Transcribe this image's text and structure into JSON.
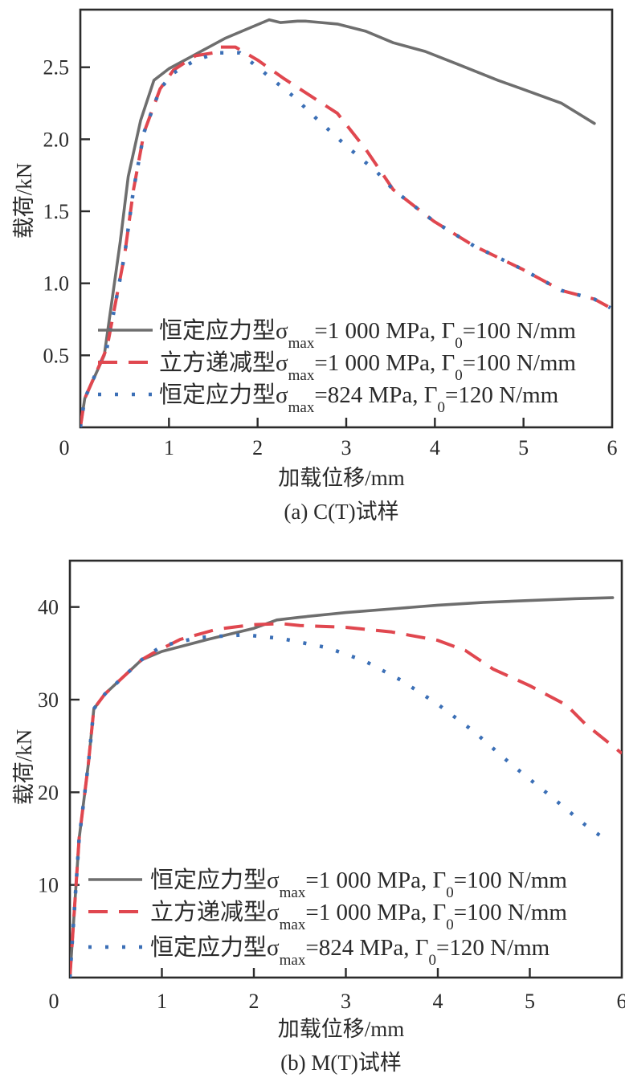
{
  "chart_data": [
    {
      "type": "line",
      "caption": "(a) C(T)试样",
      "title": "",
      "xlabel": "加载位移/mm",
      "ylabel": "载荷/kN",
      "xlim": [
        0,
        6
      ],
      "ylim": [
        0,
        2.9
      ],
      "xticks": [
        0,
        1,
        2,
        3,
        4,
        5,
        6
      ],
      "xtick_labels": [
        "0",
        "1",
        "2",
        "3",
        "4",
        "5",
        "6"
      ],
      "yticks": [
        0.5,
        1.0,
        1.5,
        2.0,
        2.5
      ],
      "ytick_labels": [
        "0.5",
        "1.0",
        "1.5",
        "2.0",
        "2.5"
      ],
      "grid": false,
      "legend_position": "bottom-right",
      "series": [
        {
          "name": "恒定应力型σmax=1 000 MPa, Γ0=100 N/mm",
          "legend": {
            "prefix": "恒定应力型σ",
            "sub1": "max",
            "mid": "=1 000 MPa, Γ",
            "sub2": "0",
            "suffix": "=100 N/mm"
          },
          "style": "solid",
          "color": "#6e6e6e",
          "x": [
            0,
            0.05,
            0.27,
            0.45,
            0.54,
            0.68,
            0.83,
            1.0,
            1.27,
            1.63,
            1.86,
            2.13,
            2.26,
            2.45,
            2.54,
            2.9,
            3.22,
            3.53,
            3.89,
            4.26,
            4.71,
            4.98,
            5.43,
            5.8
          ],
          "y": [
            0,
            0.2,
            0.5,
            1.29,
            1.74,
            2.13,
            2.41,
            2.49,
            2.58,
            2.7,
            2.76,
            2.83,
            2.81,
            2.82,
            2.82,
            2.8,
            2.75,
            2.67,
            2.61,
            2.52,
            2.41,
            2.35,
            2.25,
            2.11
          ]
        },
        {
          "name": "立方递减型σmax=1 000 MPa, Γ0=100 N/mm",
          "legend": {
            "prefix": "立方递减型σ",
            "sub1": "max",
            "mid": "=1 000 MPa, Γ",
            "sub2": "0",
            "suffix": "=100 N/mm"
          },
          "style": "dashed",
          "color": "#e0474f",
          "x": [
            0,
            0.05,
            0.3,
            0.5,
            0.6,
            0.72,
            0.9,
            1.05,
            1.3,
            1.5,
            1.55,
            1.75,
            2.0,
            2.3,
            2.6,
            2.9,
            3.22,
            3.53,
            3.99,
            4.44,
            4.98,
            5.43,
            5.8,
            5.98
          ],
          "y": [
            0,
            0.2,
            0.55,
            1.2,
            1.65,
            2.05,
            2.35,
            2.48,
            2.58,
            2.6,
            2.64,
            2.64,
            2.55,
            2.42,
            2.3,
            2.18,
            1.93,
            1.65,
            1.43,
            1.26,
            1.1,
            0.95,
            0.89,
            0.83
          ]
        },
        {
          "name": "恒定应力型σmax=824 MPa, Γ0=120 N/mm",
          "legend": {
            "prefix": "恒定应力型σ",
            "sub1": "max",
            "mid": "=824 MPa, Γ",
            "sub2": "0",
            "suffix": "=120 N/mm"
          },
          "style": "dotted",
          "color": "#3b6fb6",
          "x": [
            0,
            0.05,
            0.3,
            0.5,
            0.6,
            0.72,
            0.9,
            1.05,
            1.3,
            1.55,
            1.8,
            2.08,
            2.4,
            2.67,
            2.99,
            3.35,
            3.53,
            3.99,
            4.44,
            4.98,
            5.43,
            5.8,
            5.98
          ],
          "y": [
            0,
            0.2,
            0.55,
            1.2,
            1.65,
            2.05,
            2.35,
            2.46,
            2.55,
            2.6,
            2.6,
            2.46,
            2.3,
            2.14,
            1.96,
            1.77,
            1.65,
            1.43,
            1.26,
            1.1,
            0.95,
            0.89,
            0.83
          ]
        }
      ]
    },
    {
      "type": "line",
      "caption": "(b) M(T)试样",
      "title": "",
      "xlabel": "加载位移/mm",
      "ylabel": "载荷/kN",
      "xlim": [
        0,
        6
      ],
      "ylim": [
        0,
        45
      ],
      "xticks": [
        0,
        1,
        2,
        3,
        4,
        5,
        6
      ],
      "xtick_labels": [
        "0",
        "1",
        "2",
        "3",
        "4",
        "5",
        "6"
      ],
      "yticks": [
        10,
        20,
        30,
        40
      ],
      "ytick_labels": [
        "10",
        "20",
        "30",
        "40"
      ],
      "grid": false,
      "legend_position": "bottom-right",
      "series": [
        {
          "name": "恒定应力型σmax=1 000 MPa, Γ0=100 N/mm",
          "legend": {
            "prefix": "恒定应力型σ",
            "sub1": "max",
            "mid": "=1 000 MPa, Γ",
            "sub2": "0",
            "suffix": "=100 N/mm"
          },
          "style": "solid",
          "color": "#6e6e6e",
          "x": [
            0,
            0.1,
            0.2,
            0.26,
            0.38,
            0.78,
            1.0,
            1.5,
            2.0,
            2.25,
            2.5,
            3.0,
            3.5,
            4.0,
            4.5,
            5.0,
            5.5,
            5.9
          ],
          "y": [
            0,
            15,
            23,
            29,
            30.6,
            34.3,
            35.2,
            36.5,
            37.7,
            38.6,
            38.9,
            39.4,
            39.8,
            40.2,
            40.5,
            40.7,
            40.9,
            41.0
          ]
        },
        {
          "name": "立方递减型σmax=1 000 MPa, Γ0=100 N/mm",
          "legend": {
            "prefix": "立方递减型σ",
            "sub1": "max",
            "mid": "=1 000 MPa, Γ",
            "sub2": "0",
            "suffix": "=100 N/mm"
          },
          "style": "dashed",
          "color": "#e0474f",
          "x": [
            0,
            0.1,
            0.2,
            0.26,
            0.38,
            0.78,
            0.9,
            1.2,
            1.6,
            2.0,
            2.3,
            2.5,
            3.0,
            3.5,
            4.0,
            4.3,
            4.6,
            5.0,
            5.4,
            5.6,
            5.8,
            6.0
          ],
          "y": [
            0,
            15,
            23,
            29,
            30.6,
            34.3,
            35.0,
            36.5,
            37.6,
            38.1,
            38.2,
            38.0,
            37.8,
            37.3,
            36.4,
            35.3,
            33.3,
            31.5,
            29.4,
            27.4,
            25.8,
            24.2
          ]
        },
        {
          "name": "恒定应力型σmax=824 MPa, Γ0=120 N/mm",
          "legend": {
            "prefix": "恒定应力型σ",
            "sub1": "max",
            "mid": "=824 MPa, Γ",
            "sub2": "0",
            "suffix": "=120 N/mm"
          },
          "style": "dotted",
          "color": "#3b6fb6",
          "x": [
            0,
            0.1,
            0.2,
            0.26,
            0.38,
            0.78,
            1.0,
            1.4,
            1.9,
            2.3,
            2.8,
            3.2,
            3.6,
            4.0,
            4.4,
            4.8,
            5.2,
            5.6,
            5.85
          ],
          "y": [
            0,
            15,
            23,
            29,
            30.6,
            34.3,
            35.8,
            36.7,
            37.0,
            36.6,
            35.6,
            34.2,
            32.1,
            29.5,
            26.5,
            23.0,
            19.8,
            16.5,
            14.7
          ]
        }
      ]
    }
  ]
}
